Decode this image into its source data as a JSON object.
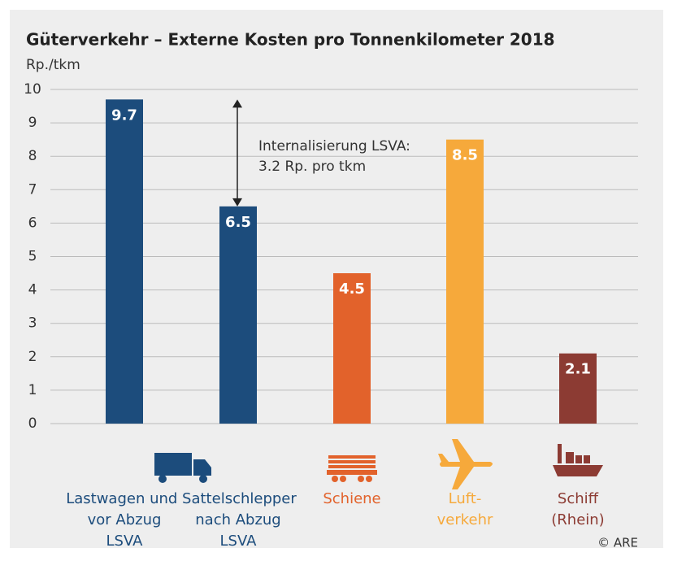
{
  "chart_data": {
    "type": "bar",
    "title": "Güterverkehr – Externe Kosten pro Tonnenkilometer 2018",
    "y_axis_label": "Rp./tkm",
    "group_label": "Lastwagen und Sattelschlepper",
    "categories": [
      [
        "vor Abzug",
        "LSVA"
      ],
      [
        "nach Abzug",
        "LSVA"
      ],
      [
        "Schiene"
      ],
      [
        "Luft-",
        "verkehr"
      ],
      [
        "Schiff",
        "(Rhein)"
      ]
    ],
    "values": [
      9.7,
      6.5,
      4.5,
      8.5,
      2.1
    ],
    "colors": [
      "#1c4c7c",
      "#1c4c7c",
      "#e2622b",
      "#f6a93b",
      "#8c3b33"
    ],
    "ylim": [
      0,
      10
    ],
    "yticks": [
      0,
      1,
      2,
      3,
      4,
      5,
      6,
      7,
      8,
      9,
      10
    ],
    "grid": true,
    "annotation": [
      "Internalisierung LSVA:",
      "3.2 Rp. pro tkm"
    ],
    "source": "© ARE"
  }
}
